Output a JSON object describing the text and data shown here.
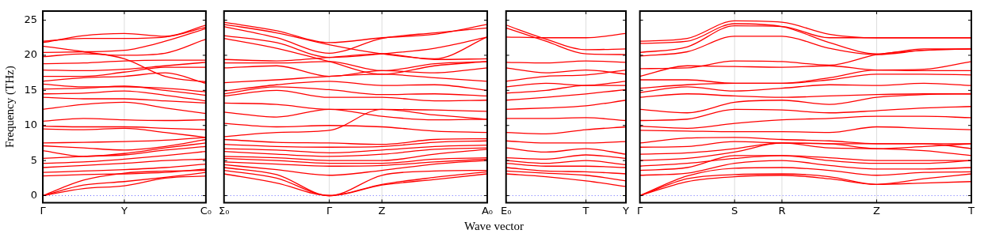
{
  "chart_data": [
    {
      "type": "line",
      "ylabel": "Frequency (THz)",
      "categories": [
        "Γ",
        null,
        "Y",
        null,
        "C₀"
      ],
      "ylim": [
        -1,
        26.3
      ],
      "yticks": [
        0,
        5,
        10,
        15,
        20,
        25
      ],
      "legend": false,
      "marker": "none",
      "line_style": "solid",
      "ref_lines": [
        {
          "axis": "y",
          "value": 0,
          "color": "#6666ff",
          "line_style": "dotted"
        },
        {
          "axis": "x",
          "value": "Y",
          "color": "#dddddd"
        }
      ],
      "series": [
        {
          "color": "#ff0000",
          "values": [
            0,
            1.0,
            1.4,
            2.5,
            2.8
          ]
        },
        {
          "color": "#ff0000",
          "values": [
            0,
            1.5,
            2.0,
            2.6,
            3.3
          ]
        },
        {
          "color": "#ff0000",
          "values": [
            0,
            2.2,
            3.2,
            3.5,
            3.6
          ]
        },
        {
          "color": "#ff0000",
          "values": [
            2.8,
            3.0,
            3.1,
            3.3,
            3.8
          ]
        },
        {
          "color": "#ff0000",
          "values": [
            3.3,
            3.5,
            3.7,
            4.0,
            4.5
          ]
        },
        {
          "color": "#ff0000",
          "values": [
            4.0,
            4.3,
            4.6,
            5.0,
            5.2
          ]
        },
        {
          "color": "#ff0000",
          "values": [
            4.6,
            4.8,
            5.2,
            5.7,
            6.3
          ]
        },
        {
          "color": "#ff0000",
          "values": [
            5.3,
            5.6,
            5.8,
            6.5,
            7.0
          ]
        },
        {
          "color": "#ff0000",
          "values": [
            6.4,
            5.6,
            6.0,
            6.8,
            7.5
          ]
        },
        {
          "color": "#ff0000",
          "values": [
            7.1,
            6.8,
            6.5,
            7.0,
            8.0
          ]
        },
        {
          "color": "#ff0000",
          "values": [
            7.5,
            7.6,
            7.7,
            7.9,
            8.3
          ]
        },
        {
          "color": "#ff0000",
          "values": [
            9.5,
            9.4,
            9.6,
            9.0,
            8.3
          ]
        },
        {
          "color": "#ff0000",
          "values": [
            9.9,
            9.8,
            9.8,
            9.6,
            9.4
          ]
        },
        {
          "color": "#ff0000",
          "values": [
            10.6,
            11.0,
            10.8,
            10.7,
            10.8
          ]
        },
        {
          "color": "#ff0000",
          "values": [
            12.3,
            13.0,
            13.3,
            12.5,
            11.7
          ]
        },
        {
          "color": "#ff0000",
          "values": [
            14.0,
            13.8,
            13.8,
            13.5,
            13.2
          ]
        },
        {
          "color": "#ff0000",
          "values": [
            14.5,
            14.6,
            14.9,
            14.3,
            13.5
          ]
        },
        {
          "color": "#ff0000",
          "values": [
            15.2,
            15.3,
            15.6,
            15.0,
            14.3
          ]
        },
        {
          "color": "#ff0000",
          "values": [
            15.9,
            15.5,
            15.5,
            15.3,
            14.8
          ]
        },
        {
          "color": "#ff0000",
          "values": [
            16.3,
            16.8,
            17.0,
            17.5,
            16.0
          ]
        },
        {
          "color": "#ff0000",
          "values": [
            17.0,
            17.0,
            17.6,
            18.3,
            18.3
          ]
        },
        {
          "color": "#ff0000",
          "values": [
            17.9,
            17.8,
            18.0,
            18.5,
            19.0
          ]
        },
        {
          "color": "#ff0000",
          "values": [
            18.8,
            18.9,
            19.2,
            19.3,
            19.3
          ]
        },
        {
          "color": "#ff0000",
          "values": [
            19.8,
            20.2,
            20.0,
            20.3,
            22.3
          ]
        },
        {
          "color": "#ff0000",
          "values": [
            20.4,
            20.5,
            20.7,
            22.0,
            23.8
          ]
        },
        {
          "color": "#ff0000",
          "values": [
            21.3,
            20.5,
            19.5,
            17.0,
            16.2
          ]
        },
        {
          "color": "#ff0000",
          "values": [
            22.0,
            22.4,
            22.4,
            22.6,
            24.0
          ]
        },
        {
          "color": "#ff0000",
          "values": [
            21.8,
            22.8,
            23.1,
            22.7,
            24.3
          ]
        }
      ]
    },
    {
      "type": "line",
      "categories": [
        "Σ₀",
        null,
        "Γ",
        "Z",
        null,
        "A₀"
      ],
      "ylim": [
        -1,
        26.3
      ],
      "yticks": [
        0,
        5,
        10,
        15,
        20,
        25
      ],
      "tick_labels": "x",
      "legend": false,
      "marker": "none",
      "line_style": "solid",
      "ref_lines": [
        {
          "axis": "y",
          "value": 0,
          "color": "#6666ff",
          "line_style": "dotted"
        },
        {
          "axis": "x",
          "value": "Γ",
          "color": "#dddddd"
        },
        {
          "axis": "x",
          "value": "Z",
          "color": "#dddddd"
        }
      ],
      "series": [
        {
          "color": "#ff0000",
          "values": [
            3.1,
            1.8,
            0,
            1.5,
            2.3,
            3.1
          ]
        },
        {
          "color": "#ff0000",
          "values": [
            3.6,
            2.5,
            0,
            1.6,
            2.6,
            3.4
          ]
        },
        {
          "color": "#ff0000",
          "values": [
            4.0,
            3.0,
            0,
            2.9,
            3.5,
            3.6
          ]
        },
        {
          "color": "#ff0000",
          "values": [
            4.4,
            3.7,
            2.9,
            3.6,
            4.5,
            5.0
          ]
        },
        {
          "color": "#ff0000",
          "values": [
            4.8,
            4.5,
            4.2,
            4.3,
            4.8,
            5.2
          ]
        },
        {
          "color": "#ff0000",
          "values": [
            5.3,
            5.0,
            4.6,
            4.6,
            5.2,
            5.4
          ]
        },
        {
          "color": "#ff0000",
          "values": [
            5.6,
            5.4,
            5.0,
            5.0,
            5.9,
            6.6
          ]
        },
        {
          "color": "#ff0000",
          "values": [
            6.3,
            5.9,
            5.6,
            5.9,
            6.6,
            6.8
          ]
        },
        {
          "color": "#ff0000",
          "values": [
            6.7,
            6.5,
            6.1,
            6.5,
            7.0,
            7.2
          ]
        },
        {
          "color": "#ff0000",
          "values": [
            7.3,
            7.0,
            6.9,
            7.0,
            7.6,
            7.8
          ]
        },
        {
          "color": "#ff0000",
          "values": [
            8.0,
            7.6,
            7.5,
            7.3,
            8.0,
            8.1
          ]
        },
        {
          "color": "#ff0000",
          "values": [
            8.4,
            9.0,
            9.3,
            12.3,
            11.5,
            10.9
          ]
        },
        {
          "color": "#ff0000",
          "values": [
            10.3,
            9.8,
            10.0,
            9.8,
            9.2,
            9.0
          ]
        },
        {
          "color": "#ff0000",
          "values": [
            11.9,
            11.2,
            12.3,
            11.3,
            10.8,
            10.9
          ]
        },
        {
          "color": "#ff0000",
          "values": [
            13.2,
            13.0,
            12.3,
            12.3,
            12.2,
            12.0
          ]
        },
        {
          "color": "#ff0000",
          "values": [
            14.2,
            15.0,
            14.0,
            14.0,
            13.5,
            13.6
          ]
        },
        {
          "color": "#ff0000",
          "values": [
            14.5,
            15.5,
            15.1,
            14.4,
            14.5,
            14.2
          ]
        },
        {
          "color": "#ff0000",
          "values": [
            14.9,
            15.8,
            16.3,
            15.7,
            15.8,
            15.0
          ]
        },
        {
          "color": "#ff0000",
          "values": [
            16.1,
            16.5,
            17.0,
            17.3,
            16.8,
            16.3
          ]
        },
        {
          "color": "#ff0000",
          "values": [
            18.2,
            18.5,
            17.0,
            17.8,
            17.5,
            18.2
          ]
        },
        {
          "color": "#ff0000",
          "values": [
            18.9,
            18.9,
            19.1,
            17.8,
            18.8,
            19.1
          ]
        },
        {
          "color": "#ff0000",
          "values": [
            19.4,
            19.2,
            19.7,
            20.2,
            19.4,
            19.5
          ]
        },
        {
          "color": "#ff0000",
          "values": [
            22.4,
            21.0,
            19.1,
            17.3,
            18.5,
            19.1
          ]
        },
        {
          "color": "#ff0000",
          "values": [
            22.8,
            21.8,
            19.7,
            20.2,
            21.0,
            22.6
          ]
        },
        {
          "color": "#ff0000",
          "values": [
            24.1,
            22.5,
            20.3,
            22.4,
            23.2,
            23.9
          ]
        },
        {
          "color": "#ff0000",
          "values": [
            24.4,
            23.2,
            21.5,
            20.2,
            19.5,
            22.6
          ]
        },
        {
          "color": "#ff0000",
          "values": [
            24.7,
            23.5,
            21.8,
            22.5,
            23.0,
            24.4
          ]
        }
      ]
    },
    {
      "type": "line",
      "xlabel": "Wave vector",
      "categories": [
        "E₀",
        null,
        "T",
        "Y"
      ],
      "ylim": [
        -1,
        26.3
      ],
      "yticks": [
        0,
        5,
        10,
        15,
        20,
        25
      ],
      "tick_labels": "x",
      "legend": false,
      "marker": "none",
      "line_style": "solid",
      "ref_lines": [
        {
          "axis": "y",
          "value": 0,
          "color": "#6666ff",
          "line_style": "dotted"
        },
        {
          "axis": "x",
          "value": "T",
          "color": "#dddddd"
        }
      ],
      "series": [
        {
          "color": "#ff0000",
          "values": [
            3.1,
            2.7,
            2.1,
            1.3
          ]
        },
        {
          "color": "#ff0000",
          "values": [
            3.5,
            3.2,
            2.9,
            2.1
          ]
        },
        {
          "color": "#ff0000",
          "values": [
            4.0,
            3.5,
            3.4,
            3.1
          ]
        },
        {
          "color": "#ff0000",
          "values": [
            4.6,
            4.2,
            4.2,
            4.0
          ]
        },
        {
          "color": "#ff0000",
          "values": [
            5.0,
            4.6,
            5.0,
            4.4
          ]
        },
        {
          "color": "#ff0000",
          "values": [
            5.4,
            5.2,
            5.8,
            5.3
          ]
        },
        {
          "color": "#ff0000",
          "values": [
            6.8,
            6.2,
            6.7,
            5.9
          ]
        },
        {
          "color": "#ff0000",
          "values": [
            7.8,
            7.5,
            7.5,
            7.7
          ]
        },
        {
          "color": "#ff0000",
          "values": [
            9.0,
            8.8,
            9.4,
            9.8
          ]
        },
        {
          "color": "#ff0000",
          "values": [
            11.0,
            11.0,
            11.1,
            10.7
          ]
        },
        {
          "color": "#ff0000",
          "values": [
            12.3,
            12.5,
            12.8,
            13.6
          ]
        },
        {
          "color": "#ff0000",
          "values": [
            13.6,
            14.0,
            14.5,
            15.1
          ]
        },
        {
          "color": "#ff0000",
          "values": [
            14.6,
            15.0,
            15.7,
            15.7
          ]
        },
        {
          "color": "#ff0000",
          "values": [
            15.5,
            16.0,
            15.7,
            16.3
          ]
        },
        {
          "color": "#ff0000",
          "values": [
            16.3,
            17.0,
            17.2,
            17.9
          ]
        },
        {
          "color": "#ff0000",
          "values": [
            18.2,
            17.5,
            17.9,
            17.3
          ]
        },
        {
          "color": "#ff0000",
          "values": [
            19.0,
            18.9,
            19.2,
            19.0
          ]
        },
        {
          "color": "#ff0000",
          "values": [
            22.6,
            22.5,
            22.5,
            23.1
          ]
        },
        {
          "color": "#ff0000",
          "values": [
            23.9,
            22.0,
            20.2,
            20.1
          ]
        },
        {
          "color": "#ff0000",
          "values": [
            24.3,
            22.3,
            20.8,
            20.9
          ]
        }
      ]
    },
    {
      "type": "line",
      "categories": [
        "Γ",
        null,
        "S",
        "R",
        null,
        "Z",
        null,
        "T"
      ],
      "ylim": [
        -1,
        26.3
      ],
      "yticks": [
        0,
        5,
        10,
        15,
        20,
        25
      ],
      "tick_labels": "x",
      "legend": false,
      "marker": "none",
      "line_style": "solid",
      "ref_lines": [
        {
          "axis": "y",
          "value": 0,
          "color": "#6666ff",
          "line_style": "dotted"
        },
        {
          "axis": "x",
          "value": "S",
          "color": "#dddddd"
        },
        {
          "axis": "x",
          "value": "R",
          "color": "#dddddd"
        },
        {
          "axis": "x",
          "value": "Z",
          "color": "#dddddd"
        }
      ],
      "series": [
        {
          "color": "#ff0000",
          "values": [
            0,
            2.0,
            2.7,
            2.9,
            2.4,
            1.6,
            1.8,
            2.0
          ]
        },
        {
          "color": "#ff0000",
          "values": [
            0,
            2.4,
            3.0,
            3.1,
            2.7,
            1.6,
            2.4,
            3.1
          ]
        },
        {
          "color": "#ff0000",
          "values": [
            0,
            2.8,
            3.9,
            4.0,
            3.6,
            2.9,
            3.3,
            3.4
          ]
        },
        {
          "color": "#ff0000",
          "values": [
            2.9,
            3.2,
            4.6,
            5.0,
            4.3,
            3.8,
            3.8,
            4.0
          ]
        },
        {
          "color": "#ff0000",
          "values": [
            3.6,
            4.0,
            5.7,
            5.7,
            5.0,
            4.6,
            4.6,
            5.0
          ]
        },
        {
          "color": "#ff0000",
          "values": [
            4.2,
            4.6,
            5.3,
            5.7,
            5.4,
            5.0,
            5.0,
            5.0
          ]
        },
        {
          "color": "#ff0000",
          "values": [
            5.0,
            5.3,
            6.2,
            7.5,
            6.8,
            6.7,
            6.4,
            5.7
          ]
        },
        {
          "color": "#ff0000",
          "values": [
            5.9,
            6.1,
            6.7,
            7.5,
            7.4,
            7.4,
            7.4,
            6.7
          ]
        },
        {
          "color": "#ff0000",
          "values": [
            6.9,
            7.0,
            7.7,
            7.5,
            7.4,
            6.7,
            7.0,
            7.4
          ]
        },
        {
          "color": "#ff0000",
          "values": [
            7.5,
            8.2,
            8.3,
            8.0,
            7.8,
            7.4,
            7.4,
            7.4
          ]
        },
        {
          "color": "#ff0000",
          "values": [
            9.3,
            9.2,
            9.1,
            9.1,
            9.0,
            9.8,
            9.6,
            9.4
          ]
        },
        {
          "color": "#ff0000",
          "values": [
            9.9,
            9.6,
            10.3,
            10.8,
            11.0,
            11.3,
            11.3,
            11.1
          ]
        },
        {
          "color": "#ff0000",
          "values": [
            10.7,
            10.9,
            12.3,
            12.2,
            11.8,
            12.1,
            12.5,
            12.7
          ]
        },
        {
          "color": "#ff0000",
          "values": [
            12.3,
            11.8,
            13.3,
            13.6,
            13.0,
            14.0,
            14.4,
            14.5
          ]
        },
        {
          "color": "#ff0000",
          "values": [
            14.0,
            14.5,
            14.2,
            14.0,
            14.2,
            14.4,
            14.5,
            14.5
          ]
        },
        {
          "color": "#ff0000",
          "values": [
            14.7,
            15.5,
            14.9,
            15.3,
            15.8,
            15.7,
            16.0,
            15.7
          ]
        },
        {
          "color": "#ff0000",
          "values": [
            15.3,
            15.8,
            16.0,
            16.0,
            16.5,
            17.3,
            17.3,
            17.2
          ]
        },
        {
          "color": "#ff0000",
          "values": [
            16.5,
            16.5,
            16.0,
            16.0,
            16.8,
            17.9,
            17.8,
            17.8
          ]
        },
        {
          "color": "#ff0000",
          "values": [
            17.0,
            18.5,
            18.4,
            18.3,
            18.5,
            17.9,
            18.0,
            19.1
          ]
        },
        {
          "color": "#ff0000",
          "values": [
            18.1,
            18.2,
            19.2,
            19.1,
            18.6,
            20.1,
            20.7,
            20.9
          ]
        },
        {
          "color": "#ff0000",
          "values": [
            19.9,
            20.5,
            22.7,
            22.7,
            21.0,
            20.1,
            20.7,
            20.9
          ]
        },
        {
          "color": "#ff0000",
          "values": [
            20.4,
            21.2,
            24.2,
            24.1,
            22.5,
            22.5,
            22.5,
            22.5
          ]
        },
        {
          "color": "#ff0000",
          "values": [
            21.7,
            22.0,
            24.5,
            24.1,
            21.8,
            20.2,
            20.9,
            20.9
          ]
        },
        {
          "color": "#ff0000",
          "values": [
            22.0,
            22.4,
            24.9,
            24.7,
            23.0,
            22.5,
            22.5,
            22.5
          ]
        }
      ]
    }
  ]
}
